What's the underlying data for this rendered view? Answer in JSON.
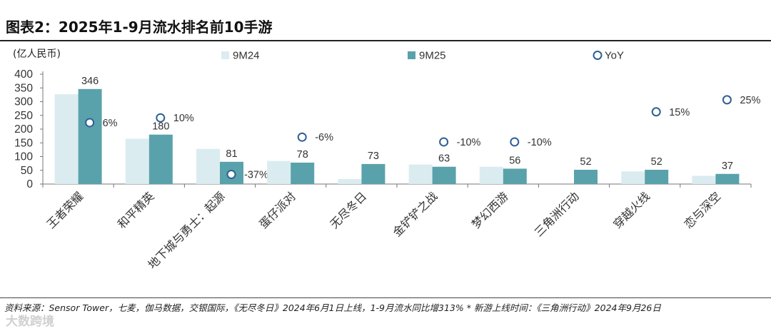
{
  "header": {
    "title": "图表2：2025年1-9月流水排名前10手游"
  },
  "chart_data": {
    "type": "bar",
    "unit_label": "(亿人民币)",
    "categories": [
      "王者荣耀",
      "和平精英",
      "地下城与勇士：起源",
      "蛋仔派对",
      "无尽冬日",
      "金铲铲之战",
      "梦幻西游",
      "三角洲行动",
      "穿越火线",
      "恋与深空"
    ],
    "series": [
      {
        "name": "9M24",
        "values": [
          327,
          165,
          128,
          84,
          18,
          71,
          63,
          null,
          46,
          30
        ],
        "color": "#daecef"
      },
      {
        "name": "9M25",
        "values": [
          346,
          180,
          81,
          78,
          73,
          63,
          56,
          52,
          52,
          37
        ],
        "color": "#5aa2ab"
      }
    ],
    "data_labels_9M25": [
      "346",
      "180",
      "81",
      "78",
      "73",
      "63",
      "56",
      "52",
      "52",
      "37"
    ],
    "yoy": {
      "name": "YoY",
      "values": [
        6,
        10,
        -37,
        -6,
        null,
        -10,
        -10,
        null,
        15,
        25
      ],
      "labels": [
        "6%",
        "10%",
        "-37%",
        "-6%",
        "",
        "-10%",
        "-10%",
        "",
        "15%",
        "25%"
      ],
      "marker_color": "#2e5f95"
    },
    "yticks": [
      "0",
      "50",
      "100",
      "150",
      "200",
      "250",
      "300",
      "350",
      "400"
    ],
    "ylim": [
      0,
      400
    ],
    "yoy_axis_visible": false,
    "legend_position": "top",
    "grid": false
  },
  "footer": {
    "source": "资料来源：Sensor Tower，七麦，伽马数据，交银国际，《无尽冬日》2024年6月1日上线，1-9月流水同比增313% * 新游上线时间：《三角洲行动》2024年9月26日",
    "watermark": "大数跨境"
  }
}
